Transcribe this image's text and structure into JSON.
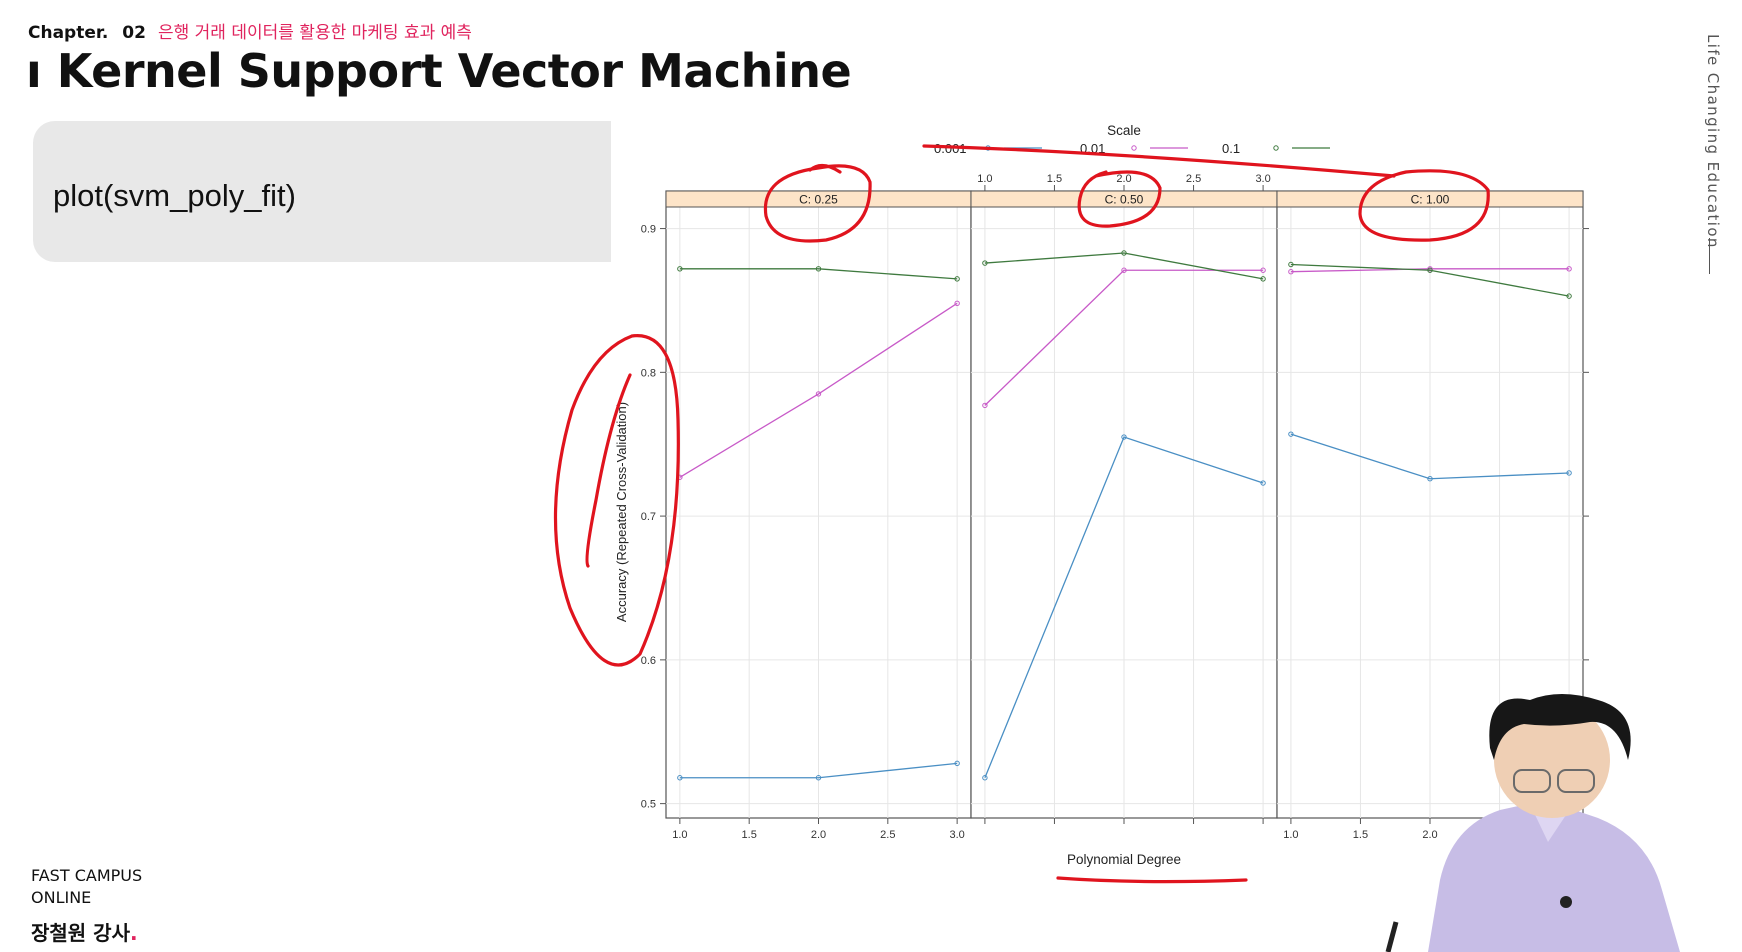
{
  "header": {
    "chapter_label": "Chapter.",
    "chapter_number": "02",
    "chapter_title": "은행 거래 데이터를 활용한 마케팅 효과 예측",
    "title": "ı Kernel Support Vector Machine"
  },
  "code": {
    "text": "plot(svm_poly_fit)"
  },
  "side": {
    "text": "Life Changing Education"
  },
  "footer": {
    "brand_line1": "FAST CAMPUS",
    "brand_line2": "ONLINE",
    "lecturer": "장철원 강사",
    "lecturer_dot": "."
  },
  "colors": {
    "series_0001": "#4a8fc4",
    "series_001": "#c85ac8",
    "series_01": "#3f7a3f",
    "strip": "#fde4c8",
    "annotation": "#e0141e"
  },
  "chart_data": {
    "type": "line",
    "legend_title": "Scale",
    "legend_position": "top",
    "xlabel": "Polynomial Degree",
    "ylabel": "Accuracy (Repeated Cross-Validation)",
    "x": [
      1,
      2,
      3
    ],
    "xticks": [
      "1.0",
      "1.5",
      "2.0",
      "2.5",
      "3.0"
    ],
    "yticks": [
      "0.5",
      "0.6",
      "0.7",
      "0.8",
      "0.9"
    ],
    "ylim": [
      0.49,
      0.915
    ],
    "xlim": [
      0.9,
      3.1
    ],
    "grid": true,
    "panels": [
      {
        "label": "C: 0.25",
        "series": [
          {
            "name": "0.001",
            "values": [
              0.518,
              0.518,
              0.528
            ]
          },
          {
            "name": "0.01",
            "values": [
              0.727,
              0.785,
              0.848
            ]
          },
          {
            "name": "0.1",
            "values": [
              0.872,
              0.872,
              0.865
            ]
          }
        ]
      },
      {
        "label": "C: 0.50",
        "series": [
          {
            "name": "0.001",
            "values": [
              0.518,
              0.755,
              0.723
            ]
          },
          {
            "name": "0.01",
            "values": [
              0.777,
              0.871,
              0.871
            ]
          },
          {
            "name": "0.1",
            "values": [
              0.876,
              0.883,
              0.865
            ]
          }
        ]
      },
      {
        "label": "C: 1.00",
        "series": [
          {
            "name": "0.001",
            "values": [
              0.757,
              0.726,
              0.73
            ]
          },
          {
            "name": "0.01",
            "values": [
              0.87,
              0.872,
              0.872
            ]
          },
          {
            "name": "0.1",
            "values": [
              0.875,
              0.871,
              0.853
            ]
          }
        ]
      }
    ]
  }
}
